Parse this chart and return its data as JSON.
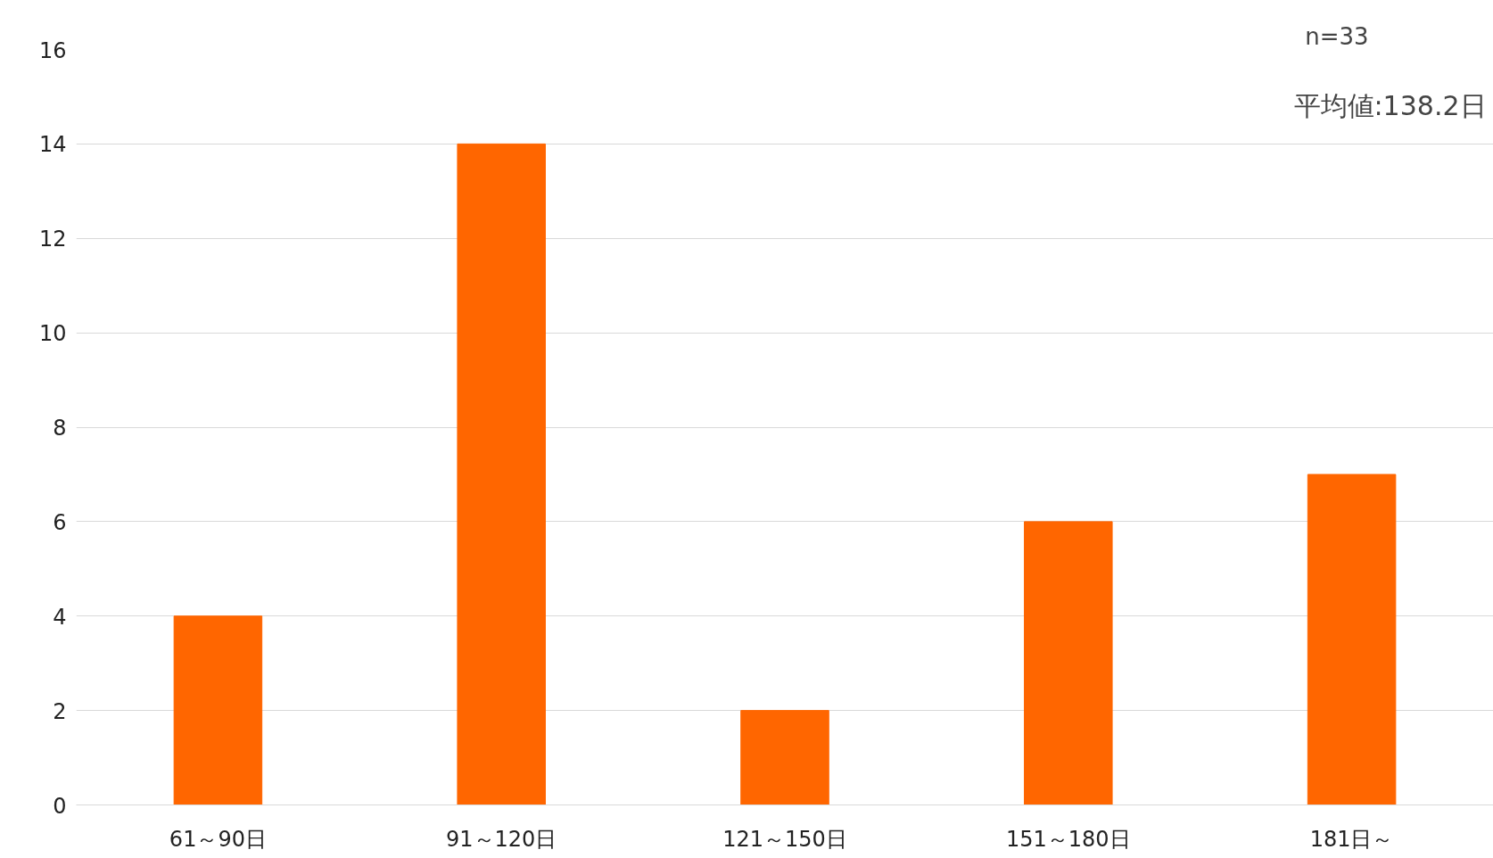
{
  "chart_data": {
    "type": "bar",
    "categories": [
      "61～90日",
      "91～120日",
      "121～150日",
      "151～180日",
      "181日～"
    ],
    "values": [
      4,
      14,
      2,
      6,
      7
    ],
    "color": "#ff6600",
    "ylim": [
      0,
      16
    ],
    "yticks": [
      0,
      2,
      4,
      6,
      8,
      10,
      12,
      14,
      16
    ],
    "grid": "y",
    "annotations": [
      "n=33",
      "平均値:138.2日"
    ]
  }
}
